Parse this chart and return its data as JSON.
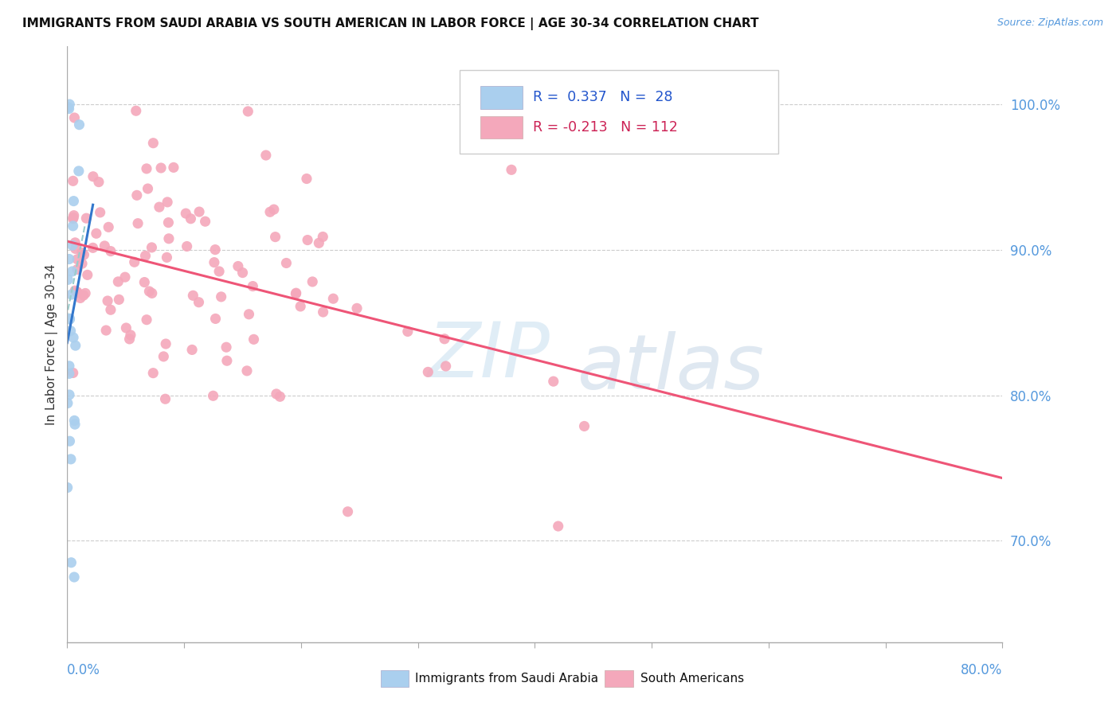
{
  "title": "IMMIGRANTS FROM SAUDI ARABIA VS SOUTH AMERICAN IN LABOR FORCE | AGE 30-34 CORRELATION CHART",
  "source": "Source: ZipAtlas.com",
  "ylabel": "In Labor Force | Age 30-34",
  "right_ytick_vals": [
    1.0,
    0.9,
    0.8,
    0.7
  ],
  "right_ytick_labels": [
    "100.0%",
    "90.0%",
    "80.0%",
    "70.0%"
  ],
  "legend_label1": "Immigrants from Saudi Arabia",
  "legend_label2": "South Americans",
  "saudi_R": 0.337,
  "saudi_N": 28,
  "south_R": -0.213,
  "south_N": 112,
  "xlim": [
    0.0,
    0.8
  ],
  "ylim": [
    0.63,
    1.04
  ],
  "background_color": "#ffffff",
  "grid_color": "#cccccc",
  "blue_dot_color": "#aacfee",
  "pink_dot_color": "#f4a8bb",
  "blue_line_color": "#3377cc",
  "pink_line_color": "#ee5577",
  "dashed_line_color": "#99cccc",
  "watermark_zip_color": "#c8dff0",
  "watermark_atlas_color": "#b8cce0"
}
